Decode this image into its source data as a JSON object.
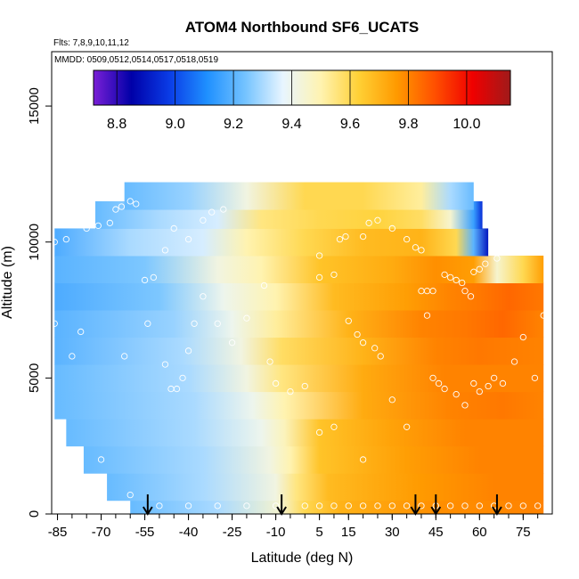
{
  "chart_data": {
    "type": "heatmap",
    "title": "ATOM4 Northbound SF6_UCATS",
    "notes": [
      "Flts: 7,8,9,10,11,12",
      "MMDD: 0509,0512,0514,0517,0518,0519"
    ],
    "xlabel": "Latitude (deg N)",
    "ylabel": "Altitude (m)",
    "xlim": [
      -87,
      85
    ],
    "ylim": [
      0,
      17000
    ],
    "x_ticks": [
      -85,
      -70,
      -55,
      -40,
      -25,
      -10,
      5,
      15,
      30,
      45,
      60,
      75
    ],
    "y_ticks": [
      0,
      5000,
      10000,
      15000
    ],
    "colorbar": {
      "range": [
        8.72,
        10.15
      ],
      "ticks": [
        8.8,
        9.0,
        9.2,
        9.4,
        9.6,
        9.8,
        10.0
      ],
      "colors": [
        "#7a1fd6",
        "#0000a8",
        "#0a3ce6",
        "#1f90ff",
        "#74c3ff",
        "#e8f5ff",
        "#fff3b0",
        "#ffd035",
        "#ff9a00",
        "#ff5000",
        "#f00000",
        "#a01a1a"
      ]
    },
    "field_rows": [
      {
        "alt": 11700,
        "lat_range": [
          -62,
          58
        ],
        "values": [
          [
            -62,
            9.22
          ],
          [
            -40,
            9.28
          ],
          [
            -20,
            9.42
          ],
          [
            0,
            9.6
          ],
          [
            20,
            9.6
          ],
          [
            40,
            9.52
          ],
          [
            50,
            9.3
          ],
          [
            58,
            9.22
          ]
        ]
      },
      {
        "alt": 11000,
        "lat_range": [
          -72,
          61
        ],
        "values": [
          [
            -72,
            9.22
          ],
          [
            -50,
            9.3
          ],
          [
            -30,
            9.35
          ],
          [
            -15,
            9.55
          ],
          [
            5,
            9.6
          ],
          [
            25,
            9.62
          ],
          [
            40,
            9.58
          ],
          [
            50,
            9.45
          ],
          [
            58,
            9.15
          ],
          [
            61,
            8.95
          ]
        ]
      },
      {
        "alt": 10000,
        "lat_range": [
          -86,
          63
        ],
        "values": [
          [
            -86,
            9.18
          ],
          [
            -60,
            9.3
          ],
          [
            -35,
            9.35
          ],
          [
            -20,
            9.5
          ],
          [
            0,
            9.6
          ],
          [
            20,
            9.68
          ],
          [
            40,
            9.7
          ],
          [
            52,
            9.6
          ],
          [
            58,
            9.2
          ],
          [
            63,
            8.9
          ]
        ]
      },
      {
        "alt": 9000,
        "lat_range": [
          -86,
          82
        ],
        "values": [
          [
            -86,
            9.2
          ],
          [
            -55,
            9.25
          ],
          [
            -30,
            9.42
          ],
          [
            -15,
            9.5
          ],
          [
            5,
            9.66
          ],
          [
            30,
            9.72
          ],
          [
            45,
            9.78
          ],
          [
            58,
            9.75
          ],
          [
            66,
            9.45
          ],
          [
            75,
            9.6
          ],
          [
            82,
            9.75
          ]
        ]
      },
      {
        "alt": 8000,
        "lat_range": [
          -86,
          82
        ],
        "values": [
          [
            -86,
            9.18
          ],
          [
            -50,
            9.25
          ],
          [
            -28,
            9.4
          ],
          [
            -10,
            9.5
          ],
          [
            10,
            9.68
          ],
          [
            35,
            9.75
          ],
          [
            50,
            9.8
          ],
          [
            60,
            9.82
          ],
          [
            70,
            9.85
          ],
          [
            82,
            9.82
          ]
        ]
      },
      {
        "alt": 7000,
        "lat_range": [
          -86,
          82
        ],
        "values": [
          [
            -86,
            9.2
          ],
          [
            -45,
            9.28
          ],
          [
            -25,
            9.4
          ],
          [
            -10,
            9.52
          ],
          [
            15,
            9.7
          ],
          [
            40,
            9.8
          ],
          [
            55,
            9.82
          ],
          [
            68,
            9.85
          ],
          [
            82,
            9.8
          ]
        ]
      },
      {
        "alt": 6000,
        "lat_range": [
          -86,
          82
        ],
        "values": [
          [
            -86,
            9.2
          ],
          [
            -42,
            9.3
          ],
          [
            -22,
            9.42
          ],
          [
            -8,
            9.58
          ],
          [
            20,
            9.7
          ],
          [
            45,
            9.8
          ],
          [
            60,
            9.82
          ],
          [
            82,
            9.8
          ]
        ]
      },
      {
        "alt": 5000,
        "lat_range": [
          -86,
          82
        ],
        "values": [
          [
            -86,
            9.22
          ],
          [
            -40,
            9.3
          ],
          [
            -20,
            9.42
          ],
          [
            -8,
            9.55
          ],
          [
            20,
            9.72
          ],
          [
            48,
            9.8
          ],
          [
            65,
            9.8
          ],
          [
            82,
            9.8
          ]
        ]
      },
      {
        "alt": 4000,
        "lat_range": [
          -86,
          82
        ],
        "values": [
          [
            -86,
            9.22
          ],
          [
            -38,
            9.3
          ],
          [
            -18,
            9.4
          ],
          [
            -7,
            9.5
          ],
          [
            20,
            9.72
          ],
          [
            50,
            9.8
          ],
          [
            68,
            9.82
          ],
          [
            82,
            9.8
          ]
        ]
      },
      {
        "alt": 3000,
        "lat_range": [
          -82,
          82
        ],
        "values": [
          [
            -82,
            9.22
          ],
          [
            -38,
            9.3
          ],
          [
            -15,
            9.4
          ],
          [
            -7,
            9.48
          ],
          [
            5,
            9.66
          ],
          [
            30,
            9.74
          ],
          [
            55,
            9.8
          ],
          [
            82,
            9.8
          ]
        ]
      },
      {
        "alt": 2000,
        "lat_range": [
          -76,
          82
        ],
        "values": [
          [
            -76,
            9.22
          ],
          [
            -35,
            9.3
          ],
          [
            -12,
            9.42
          ],
          [
            -5,
            9.5
          ],
          [
            5,
            9.66
          ],
          [
            35,
            9.75
          ],
          [
            60,
            9.8
          ],
          [
            82,
            9.8
          ]
        ]
      },
      {
        "alt": 1000,
        "lat_range": [
          -68,
          82
        ],
        "values": [
          [
            -68,
            9.22
          ],
          [
            -35,
            9.3
          ],
          [
            -10,
            9.42
          ],
          [
            -3,
            9.55
          ],
          [
            8,
            9.68
          ],
          [
            40,
            9.76
          ],
          [
            65,
            9.8
          ],
          [
            82,
            9.8
          ]
        ]
      },
      {
        "alt": 0,
        "lat_range": [
          -60,
          82
        ],
        "values": [
          [
            -60,
            9.22
          ],
          [
            -30,
            9.3
          ],
          [
            -8,
            9.45
          ],
          [
            0,
            9.6
          ],
          [
            12,
            9.7
          ],
          [
            45,
            9.78
          ],
          [
            82,
            9.8
          ]
        ]
      }
    ],
    "sample_points": [
      [
        -86,
        10000
      ],
      [
        -82,
        10100
      ],
      [
        -71,
        10600
      ],
      [
        -67,
        10700
      ],
      [
        -65,
        11200
      ],
      [
        -63,
        11300
      ],
      [
        -60,
        11500
      ],
      [
        -58,
        11400
      ],
      [
        -45,
        10500
      ],
      [
        -40,
        10100
      ],
      [
        -35,
        10800
      ],
      [
        -32,
        11100
      ],
      [
        -28,
        11200
      ],
      [
        -75,
        10500
      ],
      [
        -48,
        9700
      ],
      [
        -55,
        8600
      ],
      [
        -52,
        8700
      ],
      [
        -54,
        7000
      ],
      [
        -48,
        5500
      ],
      [
        -46,
        4600
      ],
      [
        -44,
        4600
      ],
      [
        -42,
        5000
      ],
      [
        -40,
        6000
      ],
      [
        -38,
        7000
      ],
      [
        -35,
        8000
      ],
      [
        -30,
        7000
      ],
      [
        -25,
        6300
      ],
      [
        -20,
        7200
      ],
      [
        -14,
        8400
      ],
      [
        -12,
        5600
      ],
      [
        -10,
        4800
      ],
      [
        -5,
        4500
      ],
      [
        0,
        4700
      ],
      [
        -77,
        6700
      ],
      [
        -80,
        5800
      ],
      [
        -86,
        7000
      ],
      [
        -62,
        5800
      ],
      [
        5,
        9500
      ],
      [
        5,
        8700
      ],
      [
        10,
        8800
      ],
      [
        12,
        10100
      ],
      [
        14,
        10200
      ],
      [
        20,
        10200
      ],
      [
        22,
        10700
      ],
      [
        25,
        10800
      ],
      [
        30,
        10500
      ],
      [
        35,
        10100
      ],
      [
        38,
        9800
      ],
      [
        40,
        9700
      ],
      [
        40,
        8200
      ],
      [
        42,
        8200
      ],
      [
        44,
        8200
      ],
      [
        48,
        8800
      ],
      [
        50,
        8700
      ],
      [
        52,
        8600
      ],
      [
        54,
        8500
      ],
      [
        55,
        8200
      ],
      [
        57,
        8000
      ],
      [
        58,
        8900
      ],
      [
        60,
        9000
      ],
      [
        62,
        9200
      ],
      [
        66,
        9400
      ],
      [
        70,
        11000
      ],
      [
        72,
        11300
      ],
      [
        75,
        11500
      ],
      [
        77,
        11600
      ],
      [
        79,
        11700
      ],
      [
        81,
        10600
      ],
      [
        15,
        7100
      ],
      [
        18,
        6600
      ],
      [
        20,
        6300
      ],
      [
        24,
        6100
      ],
      [
        26,
        5800
      ],
      [
        30,
        4200
      ],
      [
        35,
        3200
      ],
      [
        42,
        7300
      ],
      [
        44,
        5000
      ],
      [
        46,
        4800
      ],
      [
        48,
        4600
      ],
      [
        52,
        4400
      ],
      [
        55,
        4000
      ],
      [
        58,
        4800
      ],
      [
        60,
        4500
      ],
      [
        63,
        4700
      ],
      [
        65,
        5000
      ],
      [
        68,
        4800
      ],
      [
        72,
        5600
      ],
      [
        75,
        6500
      ],
      [
        79,
        5000
      ],
      [
        82,
        7300
      ],
      [
        5,
        3000
      ],
      [
        10,
        3200
      ],
      [
        20,
        2000
      ],
      [
        -70,
        2000
      ],
      [
        -80,
        1500
      ],
      [
        -60,
        700
      ],
      [
        -50,
        300
      ],
      [
        -40,
        300
      ],
      [
        -30,
        300
      ],
      [
        -20,
        300
      ],
      [
        -10,
        300
      ],
      [
        0,
        300
      ],
      [
        5,
        300
      ],
      [
        10,
        300
      ],
      [
        15,
        300
      ],
      [
        20,
        300
      ],
      [
        25,
        300
      ],
      [
        30,
        300
      ],
      [
        35,
        300
      ],
      [
        40,
        300
      ],
      [
        45,
        300
      ],
      [
        50,
        300
      ],
      [
        55,
        300
      ],
      [
        60,
        300
      ],
      [
        65,
        300
      ],
      [
        70,
        300
      ],
      [
        75,
        300
      ],
      [
        80,
        300
      ]
    ],
    "flight_markers_lat": [
      -54,
      -8,
      38,
      45,
      66
    ]
  }
}
